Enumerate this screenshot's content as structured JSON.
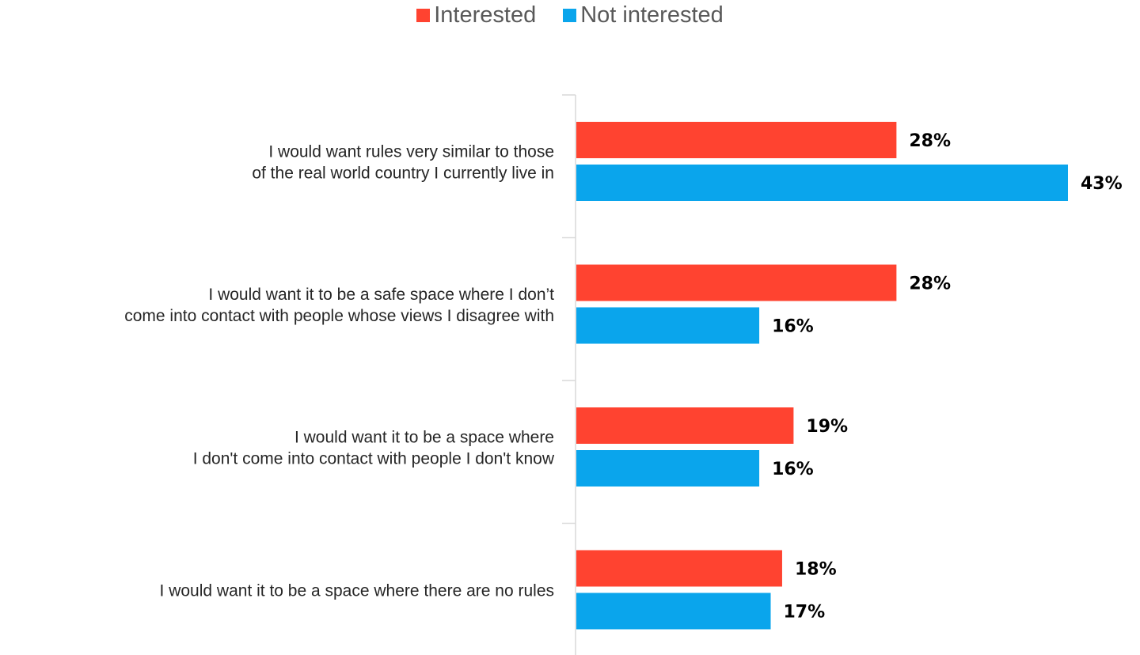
{
  "chart_data": {
    "type": "bar",
    "orientation": "horizontal",
    "title": "",
    "xlabel": "",
    "ylabel": "",
    "categories": [
      [
        "I would want rules very similar to those",
        "of the real world country I currently live in"
      ],
      [
        "I would want it to be a safe space where I don’t",
        "come into contact with people whose views I disagree with"
      ],
      [
        "I would want it to be a space where",
        "I don't come into contact with people I don't know"
      ],
      [
        "I would want it to be a space where there are no rules"
      ]
    ],
    "series": [
      {
        "name": "Interested",
        "color": "#FF4330",
        "values": [
          28,
          28,
          19,
          18
        ],
        "labels": [
          "28%",
          "28%",
          "19%",
          "18%"
        ]
      },
      {
        "name": "Not interested",
        "color": "#0AA5EC",
        "values": [
          43,
          16,
          16,
          17
        ],
        "labels": [
          "43%",
          "16%",
          "16%",
          "17%"
        ]
      }
    ],
    "xlim": [
      0,
      43
    ],
    "grid": false,
    "axis_color": "#D9D9D9",
    "legend_position": "top-center"
  }
}
